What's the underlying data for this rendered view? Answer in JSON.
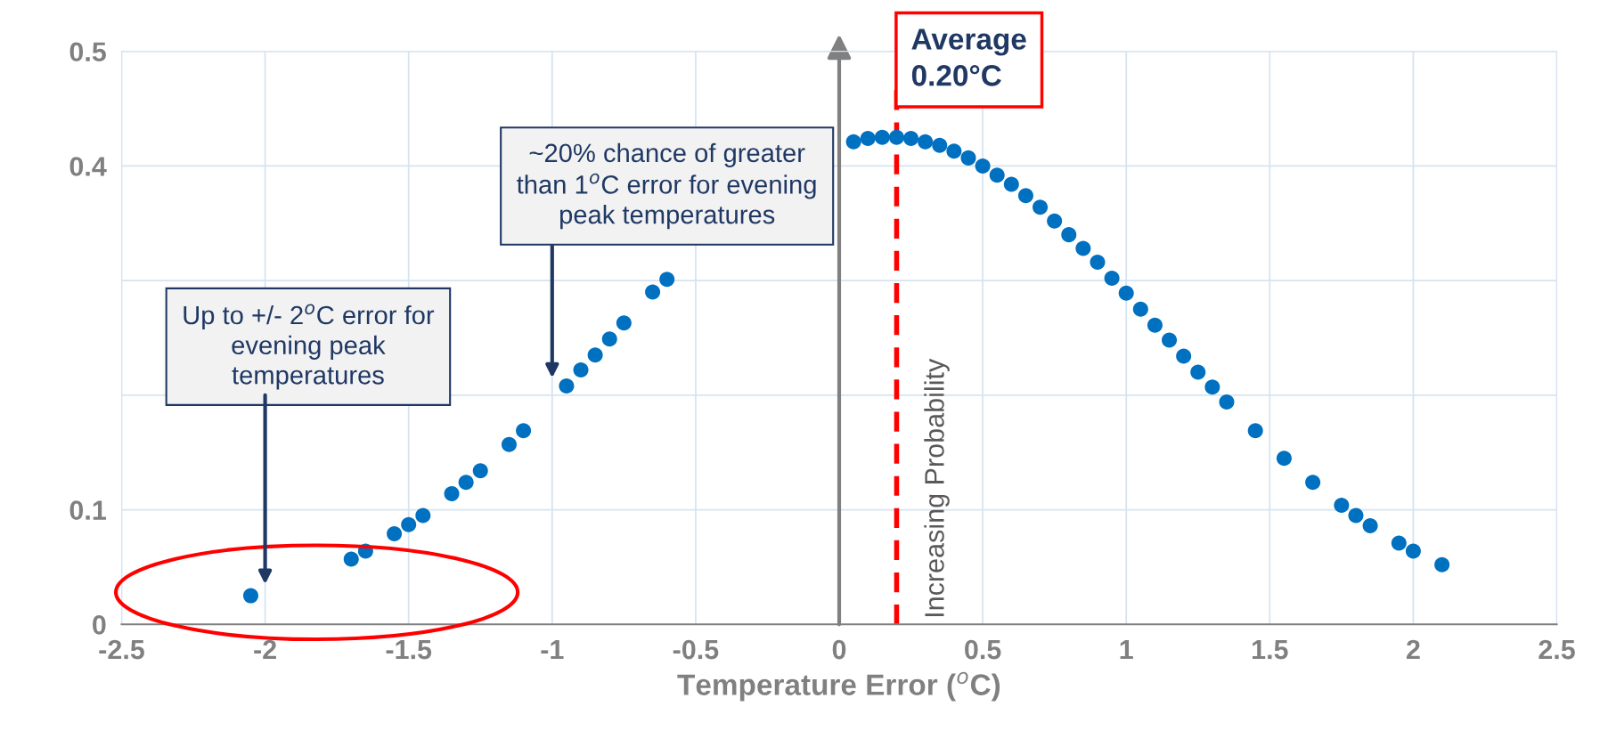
{
  "chart_data": {
    "type": "scatter",
    "xlabel": "Temperature Error ($^{o}$C)",
    "series": [
      {
        "color": "#0070c0",
        "x": [
          -2.05,
          -1.7,
          -1.65,
          -1.55,
          -1.5,
          -1.45,
          -1.35,
          -1.3,
          -1.25,
          -1.15,
          -1.1,
          -0.95,
          -0.9,
          -0.85,
          -0.8,
          -0.75,
          -0.65,
          -0.6,
          0.05,
          0.1,
          0.15,
          0.2,
          0.25,
          0.3,
          0.35,
          0.4,
          0.45,
          0.5,
          0.55,
          0.6,
          0.65,
          0.7,
          0.75,
          0.8,
          0.85,
          0.9,
          0.95,
          1.0,
          1.05,
          1.1,
          1.15,
          1.2,
          1.25,
          1.3,
          1.35,
          1.45,
          1.55,
          1.65,
          1.75,
          1.8,
          1.85,
          1.95,
          2.0,
          2.1
        ],
        "values": [
          0.025,
          0.057,
          0.064,
          0.079,
          0.087,
          0.095,
          0.114,
          0.124,
          0.134,
          0.157,
          0.169,
          0.208,
          0.222,
          0.235,
          0.249,
          0.263,
          0.29,
          0.301,
          0.421,
          0.424,
          0.425,
          0.425,
          0.424,
          0.421,
          0.418,
          0.413,
          0.407,
          0.4,
          0.392,
          0.384,
          0.374,
          0.364,
          0.352,
          0.34,
          0.328,
          0.316,
          0.302,
          0.289,
          0.275,
          0.261,
          0.248,
          0.234,
          0.22,
          0.207,
          0.194,
          0.169,
          0.145,
          0.124,
          0.104,
          0.095,
          0.086,
          0.071,
          0.064,
          0.052
        ]
      }
    ],
    "marker": "circle",
    "xlim": [
      -2.5,
      2.5
    ],
    "xticks": [
      -2.5,
      -2,
      -1.5,
      -1,
      -0.5,
      0,
      0.5,
      1,
      1.5,
      2,
      2.5
    ],
    "ylim": [
      0,
      0.5
    ],
    "yticks": [
      0,
      0.1,
      {
        "value": 0.2,
        "label": null
      },
      {
        "value": 0.3,
        "label": null
      },
      0.4,
      0.5
    ],
    "grid": true,
    "ref_lines": [
      {
        "axis": "x",
        "value": 0.2,
        "label": "Average\n0.20°C",
        "color": "#ff0000",
        "line_style": "dashed"
      }
    ],
    "annotations": [
      "Up to +/- 2$^{o}$C error for\nevening peak\ntemperatures",
      "~20% chance of greater\nthan 1$^{o}$C error for evening\npeak temperatures",
      "Increasing Probability"
    ]
  }
}
